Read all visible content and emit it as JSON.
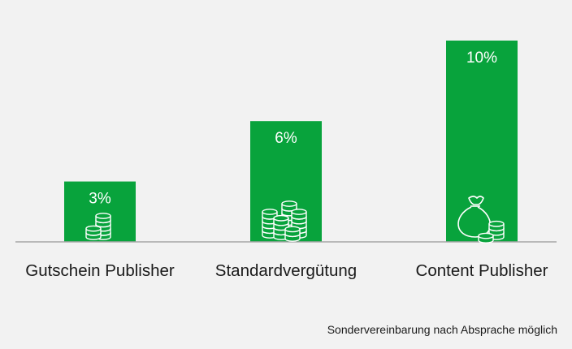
{
  "colors": {
    "bar": "#08a33c",
    "axis": "#a6a6a6",
    "background": "#f2f2f2",
    "icon_stroke": "#ffffff"
  },
  "chart_data": {
    "type": "bar",
    "categories": [
      "Gutschein Publisher",
      "Standardvergütung",
      "Content Publisher"
    ],
    "values": [
      3,
      6,
      10
    ],
    "value_labels": [
      "3%",
      "6%",
      "10%"
    ],
    "unit": "%",
    "ylim": [
      0,
      10
    ],
    "grid": false,
    "legend": "none",
    "bar_icons": [
      "coin-stack-icon",
      "coin-piles-icon",
      "money-bag-icon"
    ]
  },
  "footnote": "Sondervereinbarung nach Absprache möglich"
}
